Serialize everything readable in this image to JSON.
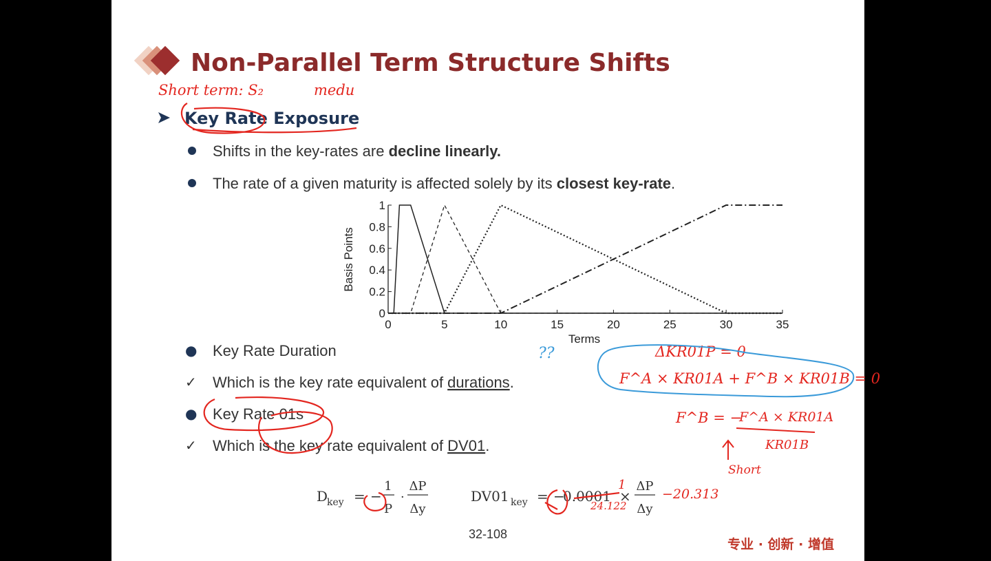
{
  "slide": {
    "title": "Non-Parallel Term Structure Shifts",
    "section_heading": "Key Rate Exposure",
    "bullets_top": [
      {
        "plain": "Shifts in the key-rates are ",
        "bold": "decline linearly.",
        "after": ""
      },
      {
        "plain": "The rate of a given maturity is affected solely by its ",
        "bold": "closest key-rate",
        "after": "."
      }
    ],
    "bullets_bottom": [
      {
        "marker": "●",
        "pre": "Key Rate Duration",
        "underline": "",
        "post": ""
      },
      {
        "marker": "✓",
        "pre": "Which is the key rate equivalent of ",
        "underline": "durations",
        "post": "."
      },
      {
        "marker": "●",
        "pre": "Key Rate 01s",
        "underline": "",
        "post": ""
      },
      {
        "marker": "✓",
        "pre": "Which is the key rate equivalent of ",
        "underline": "DV01",
        "post": "."
      }
    ],
    "formula_left": {
      "lhs": "D",
      "sub": "key",
      "eq": "=",
      "sign": "−",
      "num": "1",
      "den": "P",
      "dot": "·",
      "num2": "ΔP",
      "den2": "Δy"
    },
    "formula_right": {
      "lhs": "DV01",
      "sub": "key",
      "eq": "=",
      "sign": "−",
      "coef": "0.0001",
      "times": "×",
      "num": "ΔP",
      "den": "Δy"
    },
    "page_number": "32-108",
    "footer_brand": "专业 · 创新 · 增值"
  },
  "annotations": {
    "top_left": "Short term: S₂",
    "top_mid": "medu",
    "eq1": "ΔKR01P = 0",
    "eq2": "F^A × KR01A + F^B × KR01B = 0",
    "eq3_lhs": "F^B = −",
    "eq3_num": "F^A × KR01A",
    "eq3_den": "KR01B",
    "short_label": "Short",
    "formula_note_1": "1",
    "formula_note_2": "24.122",
    "formula_note_3": "−20.313",
    "question_marks": "??"
  },
  "colors": {
    "title": "#8b2a2a",
    "heading": "#1f3556",
    "text": "#333333",
    "ink_red": "#e3261f",
    "ink_blue": "#3a9ad9",
    "diamond_dark": "#9c2e2e",
    "diamond_mid": "#d9907a",
    "diamond_light": "#f1d2c4"
  },
  "chart_data": {
    "type": "line",
    "xlabel": "Terms",
    "ylabel": "Basis Points",
    "xlim": [
      0,
      35
    ],
    "ylim": [
      0,
      1
    ],
    "xticks": [
      0,
      5,
      10,
      15,
      20,
      25,
      30,
      35
    ],
    "yticks": [
      0,
      0.2,
      0.4,
      0.6,
      0.8,
      1
    ],
    "ytick_labels": [
      "0",
      "0.2",
      "0.4",
      "0.6",
      "0.8",
      "1"
    ],
    "grid": false,
    "legend": "none",
    "series": [
      {
        "style": "solid",
        "points": [
          [
            0,
            0
          ],
          [
            0.5,
            0
          ],
          [
            1,
            1
          ],
          [
            2,
            1
          ],
          [
            5,
            0
          ],
          [
            35,
            0
          ]
        ]
      },
      {
        "style": "dashed",
        "points": [
          [
            0,
            0
          ],
          [
            1,
            0
          ],
          [
            2,
            0
          ],
          [
            5,
            1
          ],
          [
            10,
            0
          ],
          [
            35,
            0
          ]
        ]
      },
      {
        "style": "dotted",
        "points": [
          [
            0,
            0
          ],
          [
            5,
            0
          ],
          [
            10,
            1
          ],
          [
            30,
            0
          ],
          [
            35,
            0
          ]
        ]
      },
      {
        "style": "dashdot",
        "points": [
          [
            0,
            0
          ],
          [
            10,
            0
          ],
          [
            30,
            1
          ],
          [
            35,
            1
          ]
        ]
      }
    ]
  }
}
